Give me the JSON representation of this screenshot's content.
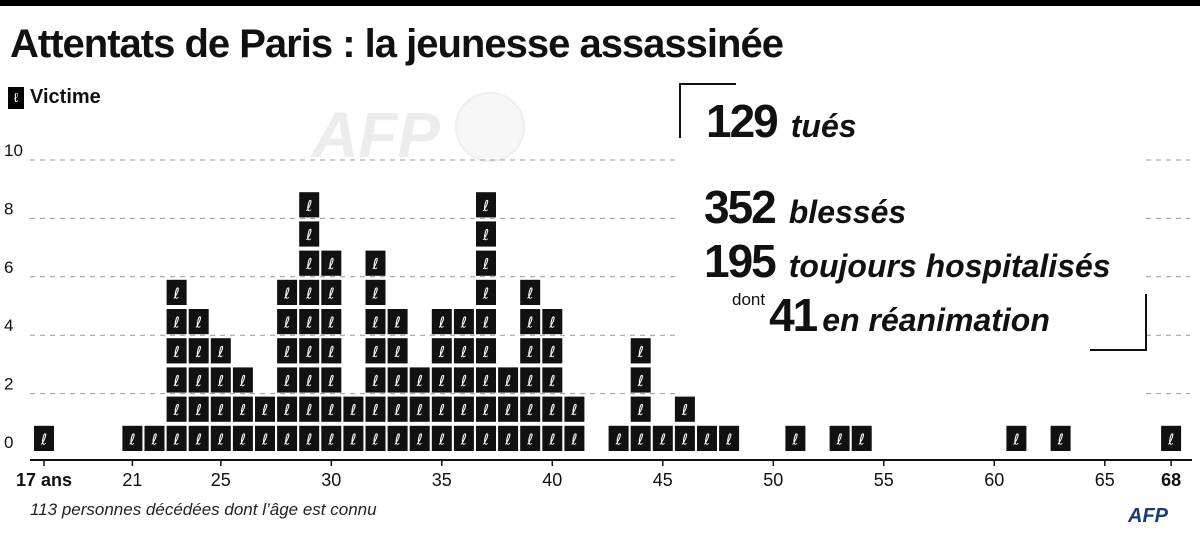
{
  "title": "Attentats de Paris : la jeunesse assassinée",
  "legend": {
    "label": "Victime",
    "icon": "ribbon-icon"
  },
  "stats": {
    "killed_num": "129",
    "killed_label": "tués",
    "injured_num": "352",
    "injured_label": "blessés",
    "hospital_num": "195",
    "hospital_label": "toujours hospitalisés",
    "icu_prefix": "dont",
    "icu_num": "41",
    "icu_label": "en réanimation"
  },
  "footnote": "113 personnes décédées dont l’âge est connu",
  "logo": "AFP",
  "watermark": "AFP",
  "chart_data": {
    "type": "bar",
    "x": [
      17,
      21,
      22,
      23,
      24,
      25,
      26,
      27,
      28,
      29,
      30,
      31,
      32,
      33,
      34,
      35,
      36,
      37,
      38,
      39,
      40,
      41,
      43,
      44,
      45,
      46,
      47,
      48,
      51,
      53,
      54,
      61,
      63,
      68
    ],
    "values": [
      1,
      1,
      1,
      6,
      5,
      4,
      3,
      2,
      6,
      9,
      7,
      2,
      7,
      5,
      3,
      5,
      5,
      9,
      3,
      6,
      5,
      2,
      1,
      4,
      1,
      2,
      1,
      1,
      1,
      1,
      1,
      1,
      1,
      1
    ],
    "ylim": [
      0,
      10
    ],
    "yticks": [
      0,
      2,
      4,
      6,
      8,
      10
    ],
    "xticks": [
      {
        "v": 17,
        "label": "17 ans",
        "bold": true
      },
      {
        "v": 21,
        "label": "21"
      },
      {
        "v": 25,
        "label": "25"
      },
      {
        "v": 30,
        "label": "30"
      },
      {
        "v": 35,
        "label": "35"
      },
      {
        "v": 40,
        "label": "40"
      },
      {
        "v": 45,
        "label": "45"
      },
      {
        "v": 50,
        "label": "50"
      },
      {
        "v": 55,
        "label": "55"
      },
      {
        "v": 60,
        "label": "60"
      },
      {
        "v": 65,
        "label": "65"
      },
      {
        "v": 68,
        "label": "68",
        "bold": true
      }
    ],
    "xlim": [
      17,
      68
    ],
    "grid": true
  }
}
